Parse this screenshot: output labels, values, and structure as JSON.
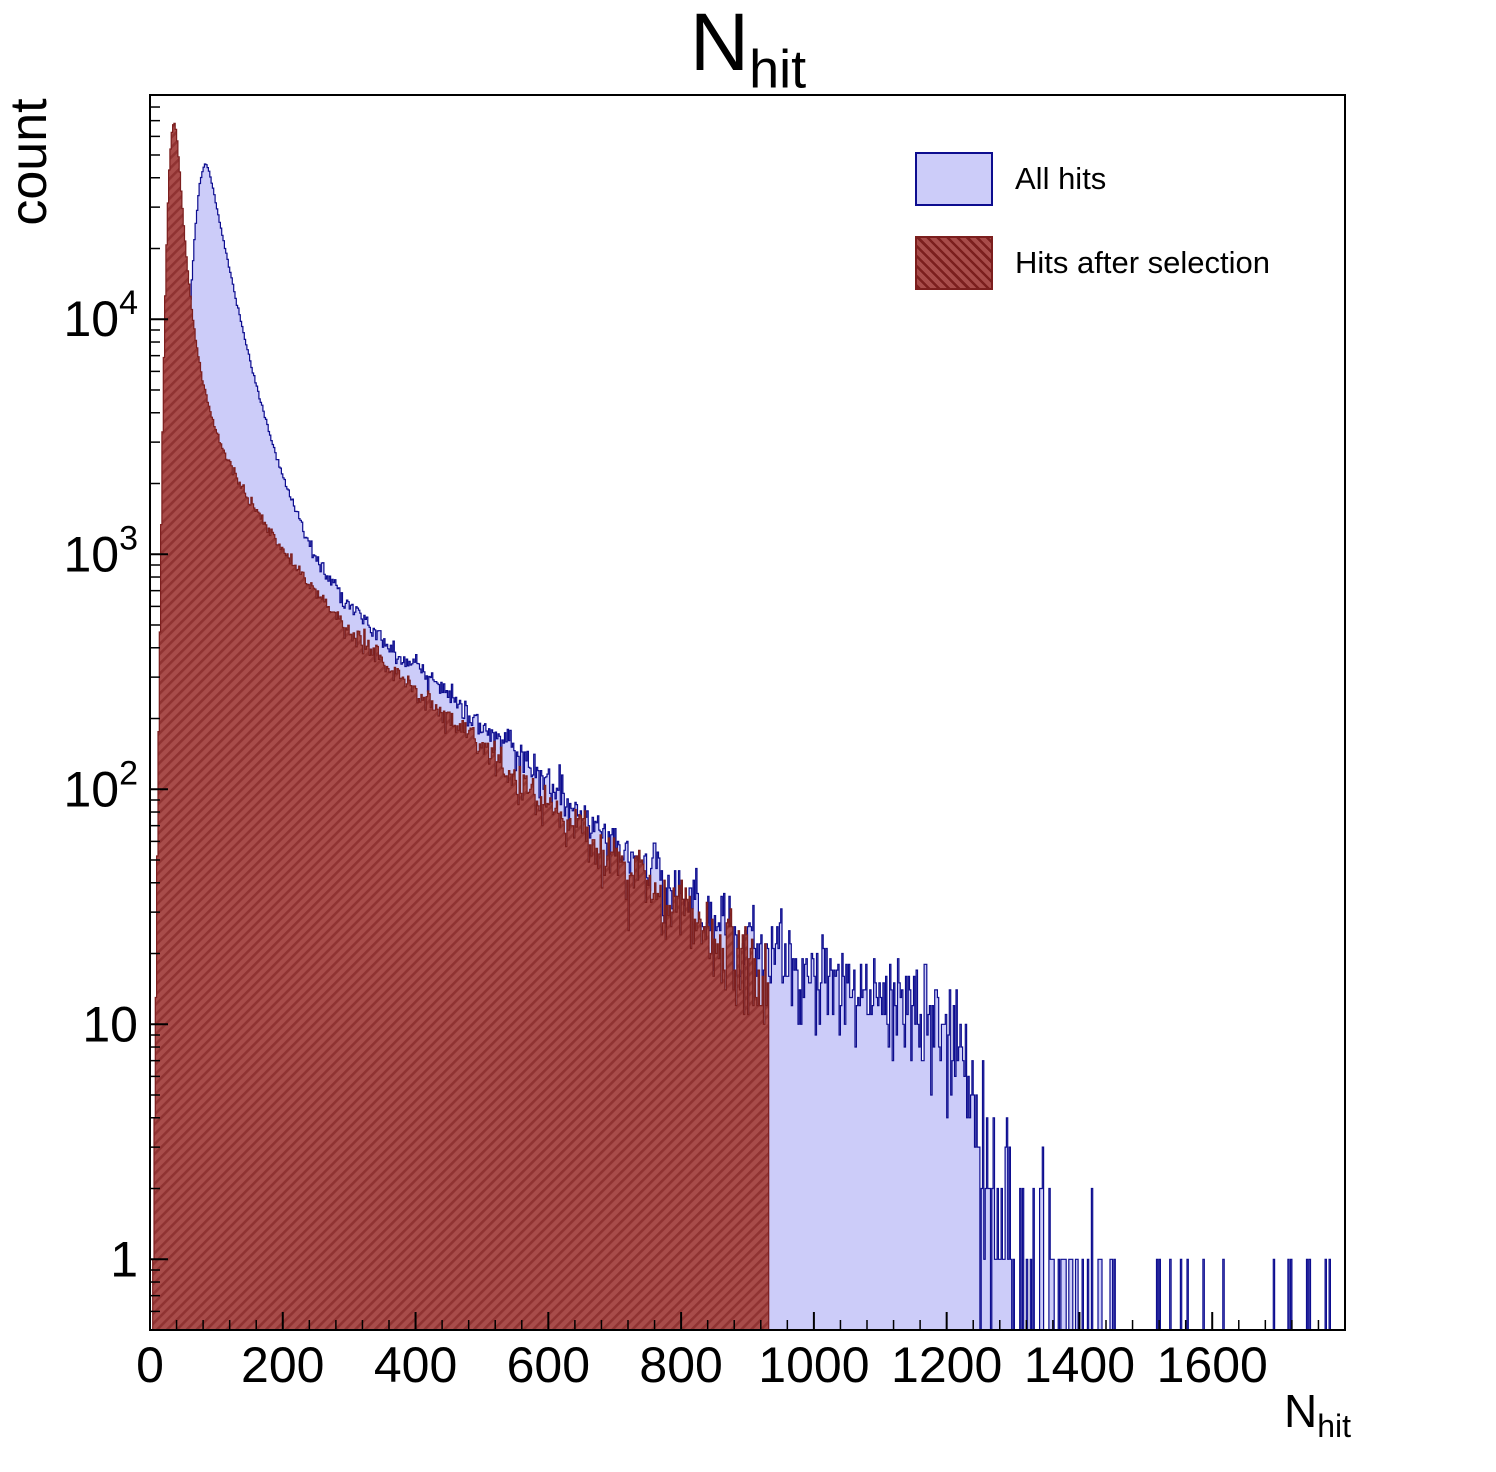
{
  "title": {
    "main": "N",
    "sub": "hit"
  },
  "axes": {
    "ylabel": "count",
    "xlabel": {
      "main": "N",
      "sub": "hit"
    },
    "xlim": [
      0,
      1800
    ],
    "ylim": [
      0.5,
      90000
    ],
    "yscale": "log",
    "x_major_ticks": [
      0,
      200,
      400,
      600,
      800,
      1000,
      1200,
      1400,
      1600
    ],
    "x_minor_step": 40,
    "y_decade_exponents": [
      0,
      1,
      2,
      3,
      4
    ],
    "grid": "off"
  },
  "chart_data": {
    "type": "histogram",
    "title": "N_hit",
    "xlabel": "N_hit",
    "ylabel": "count",
    "yscale": "log",
    "xlim": [
      0,
      1800
    ],
    "ylim": [
      0.5,
      90000
    ],
    "legend_position": "top-right",
    "bin_width": 2,
    "series": [
      {
        "name": "All hits",
        "fill": "#ccccf9",
        "edge": "#0d0d8f",
        "hatch": false,
        "seed": 1337,
        "x_start": 14,
        "x_end": 1792,
        "peak": {
          "x": 82,
          "count": 46000
        },
        "anchors": [
          [
            14,
            0.6
          ],
          [
            22,
            3
          ],
          [
            32,
            40
          ],
          [
            42,
            400
          ],
          [
            52,
            3000
          ],
          [
            60,
            11000
          ],
          [
            68,
            24000
          ],
          [
            75,
            38000
          ],
          [
            82,
            46000
          ],
          [
            88,
            44000
          ],
          [
            95,
            36000
          ],
          [
            105,
            26000
          ],
          [
            115,
            19000
          ],
          [
            130,
            12000
          ],
          [
            145,
            7800
          ],
          [
            160,
            5200
          ],
          [
            180,
            3300
          ],
          [
            200,
            2150
          ],
          [
            225,
            1400
          ],
          [
            250,
            980
          ],
          [
            275,
            760
          ],
          [
            300,
            610
          ],
          [
            330,
            490
          ],
          [
            360,
            405
          ],
          [
            400,
            330
          ],
          [
            440,
            262
          ],
          [
            480,
            212
          ],
          [
            520,
            170
          ],
          [
            560,
            136
          ],
          [
            600,
            106
          ],
          [
            640,
            83
          ],
          [
            680,
            65
          ],
          [
            720,
            53
          ],
          [
            760,
            44
          ],
          [
            800,
            36
          ],
          [
            840,
            30
          ],
          [
            880,
            26
          ],
          [
            920,
            22.5
          ],
          [
            960,
            19.5
          ],
          [
            1000,
            17
          ],
          [
            1050,
            15
          ],
          [
            1100,
            13.5
          ],
          [
            1150,
            12
          ],
          [
            1200,
            10.5
          ],
          [
            1222,
            9
          ],
          [
            1240,
            5.5
          ],
          [
            1258,
            2.6
          ],
          [
            1280,
            1.6
          ],
          [
            1310,
            1.1
          ],
          [
            1350,
            0.8
          ],
          [
            1400,
            0.55
          ],
          [
            1450,
            0.4
          ],
          [
            1510,
            0.18
          ],
          [
            1600,
            0.12
          ],
          [
            1700,
            0.09
          ],
          [
            1792,
            0.1
          ]
        ]
      },
      {
        "name": "Hits after selection",
        "fill": "#a84c4a",
        "edge": "#7c1f1e",
        "hatch": true,
        "seed": 4242,
        "x_start": 4,
        "x_end": 932,
        "peak": {
          "x": 37,
          "count": 70000
        },
        "anchors": [
          [
            4,
            0.5
          ],
          [
            8,
            5
          ],
          [
            12,
            90
          ],
          [
            16,
            900
          ],
          [
            20,
            5000
          ],
          [
            24,
            17000
          ],
          [
            28,
            38000
          ],
          [
            32,
            60000
          ],
          [
            36,
            70000
          ],
          [
            40,
            62000
          ],
          [
            45,
            42000
          ],
          [
            50,
            27000
          ],
          [
            56,
            17000
          ],
          [
            63,
            11000
          ],
          [
            70,
            7800
          ],
          [
            80,
            5400
          ],
          [
            90,
            4100
          ],
          [
            100,
            3300
          ],
          [
            115,
            2600
          ],
          [
            130,
            2150
          ],
          [
            150,
            1700
          ],
          [
            175,
            1320
          ],
          [
            200,
            1050
          ],
          [
            230,
            820
          ],
          [
            260,
            650
          ],
          [
            300,
            480
          ],
          [
            340,
            375
          ],
          [
            380,
            295
          ],
          [
            420,
            235
          ],
          [
            460,
            188
          ],
          [
            500,
            150
          ],
          [
            540,
            120
          ],
          [
            580,
            96
          ],
          [
            620,
            77
          ],
          [
            660,
            62
          ],
          [
            700,
            50
          ],
          [
            740,
            41
          ],
          [
            780,
            33
          ],
          [
            820,
            27
          ],
          [
            860,
            22
          ],
          [
            900,
            17
          ],
          [
            932,
            14
          ]
        ]
      }
    ]
  }
}
